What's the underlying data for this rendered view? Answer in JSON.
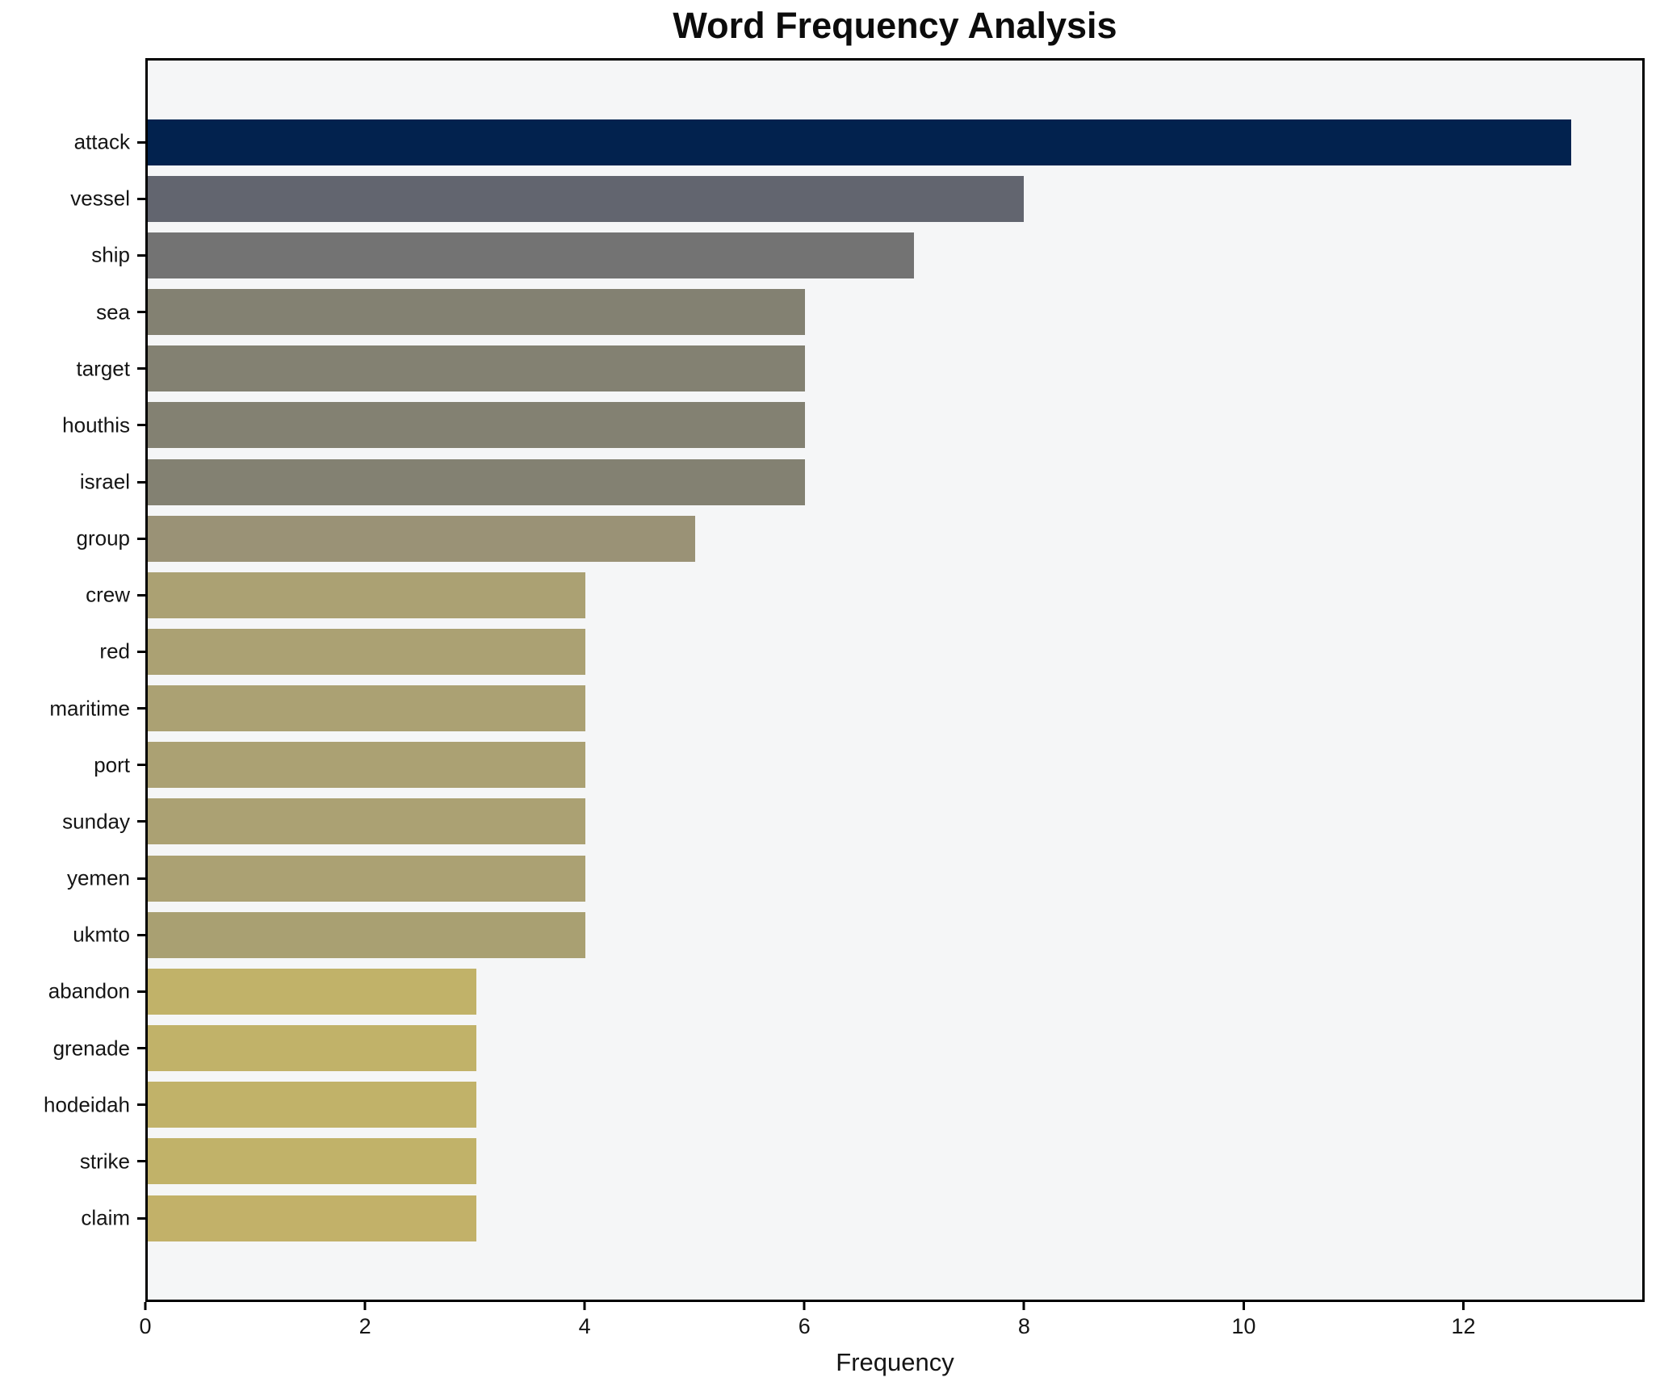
{
  "chart_data": {
    "type": "bar",
    "orientation": "horizontal",
    "title": "Word Frequency Analysis",
    "xlabel": "Frequency",
    "ylabel": "",
    "categories": [
      "attack",
      "vessel",
      "ship",
      "sea",
      "target",
      "houthis",
      "israel",
      "group",
      "crew",
      "red",
      "maritime",
      "port",
      "sunday",
      "yemen",
      "ukmto",
      "abandon",
      "grenade",
      "hodeidah",
      "strike",
      "claim"
    ],
    "values": [
      13,
      8,
      7,
      6,
      6,
      6,
      6,
      5,
      4,
      4,
      4,
      4,
      4,
      4,
      4,
      3,
      3,
      3,
      3,
      3
    ],
    "bar_colors": [
      "#02224e",
      "#62656f",
      "#737373",
      "#838172",
      "#838172",
      "#838172",
      "#838172",
      "#9a9276",
      "#aba173",
      "#aba173",
      "#aba173",
      "#aba173",
      "#aba173",
      "#aba173",
      "#a9a072",
      "#c1b269",
      "#c1b269",
      "#c1b269",
      "#c1b269",
      "#c2b169"
    ],
    "xlim": [
      0,
      13.65
    ],
    "xticks": [
      0,
      2,
      4,
      6,
      8,
      10,
      12
    ],
    "grid": false,
    "legend": "none",
    "plot_background": "#f5f6f7",
    "figure_background": "#ffffff",
    "spine_color": "#000000"
  }
}
